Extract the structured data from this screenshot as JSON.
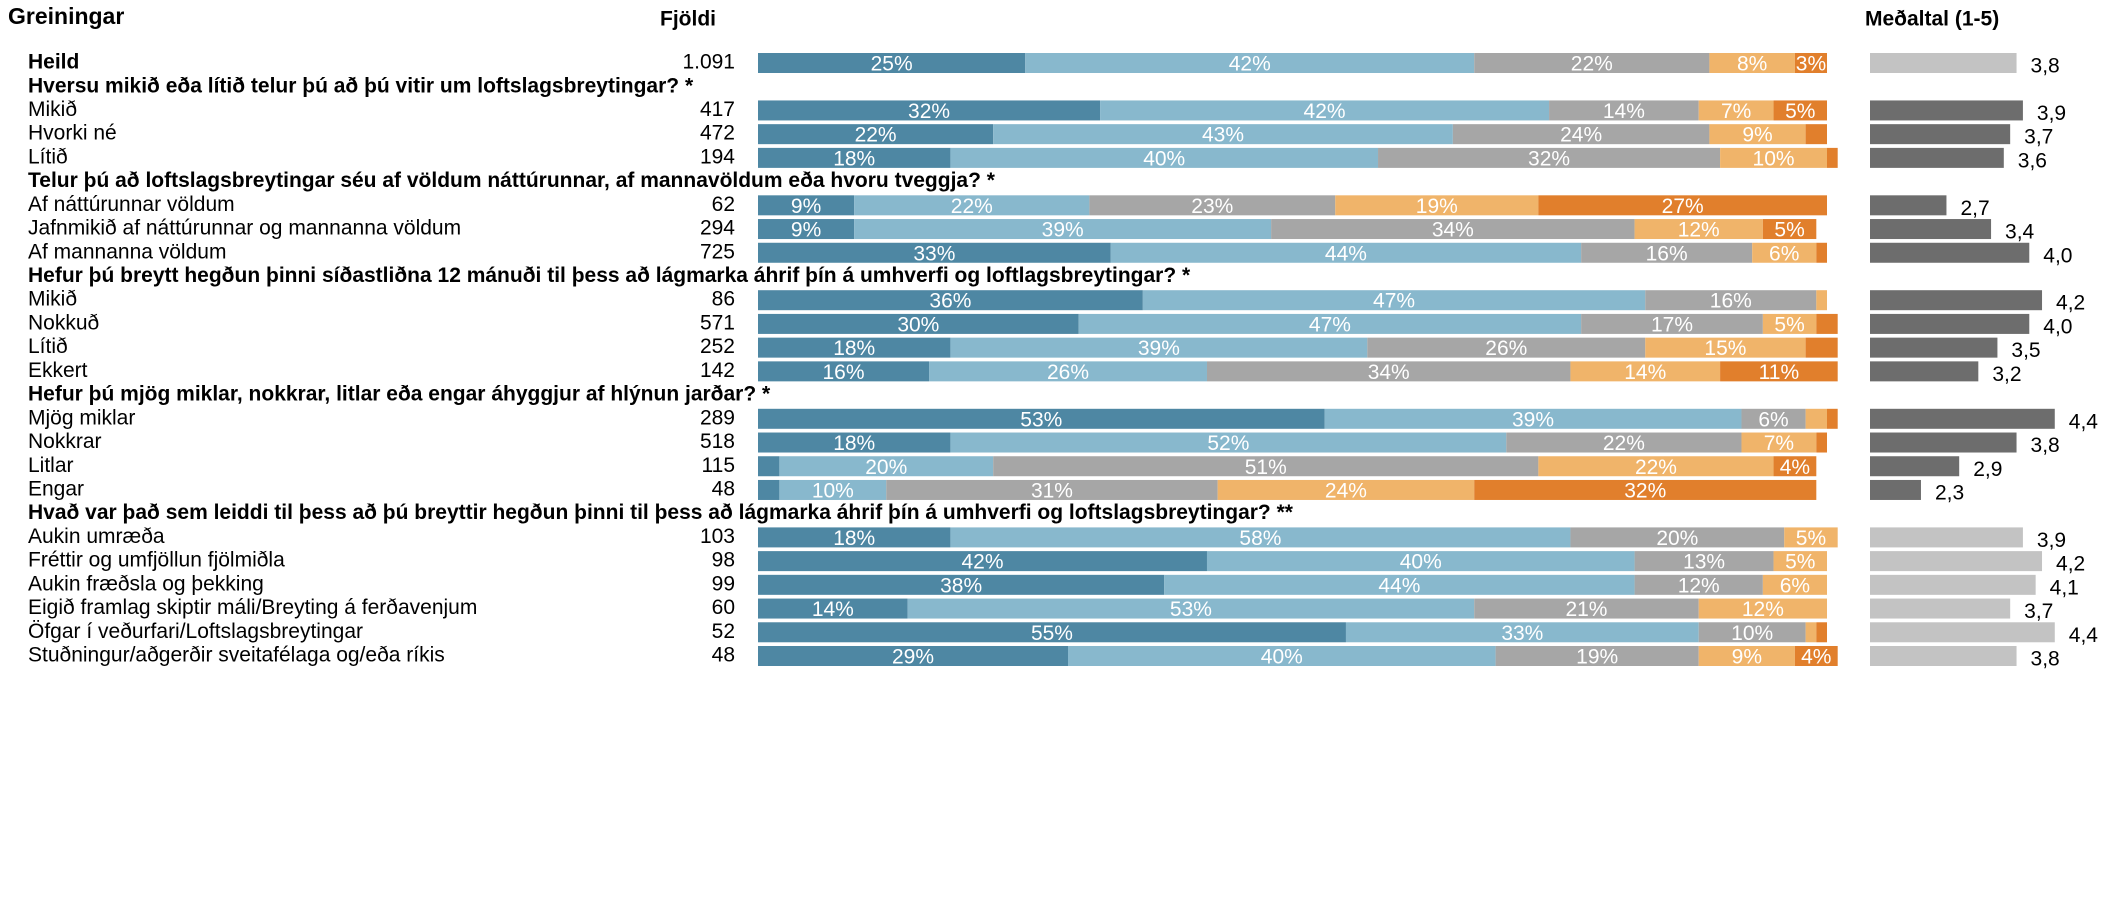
{
  "headers": {
    "label": "Greiningar",
    "count": "Fjöldi",
    "mean": "Meðaltal (1-5)"
  },
  "chart_data": {
    "type": "stacked-bar",
    "xlim": [
      0,
      100
    ],
    "colors": [
      "#4e87a3",
      "#88b8cd",
      "#a6a6a6",
      "#f0b46a",
      "#e17f2c"
    ],
    "mean_xlim": [
      1.5,
      5
    ],
    "total": {
      "label": "Heild",
      "count": "1.091",
      "values": [
        25,
        42,
        22,
        8,
        3
      ],
      "value_labels": [
        "25%",
        "42%",
        "22%",
        "8%",
        "3%"
      ],
      "mean": 3.8,
      "mean_label": "3,8",
      "mean_color": "#c3c3c3"
    },
    "groups": [
      {
        "title": "Hversu mikið eða lítið telur þú að þú vitir um loftslagsbreytingar? *",
        "mean_color": "#6d6d6d",
        "rows": [
          {
            "label": "Mikið",
            "count": "417",
            "values": [
              32,
              42,
              14,
              7,
              5
            ],
            "value_labels": [
              "32%",
              "42%",
              "14%",
              "7%",
              "5%"
            ],
            "mean": 3.9,
            "mean_label": "3,9"
          },
          {
            "label": "Hvorki né",
            "count": "472",
            "values": [
              22,
              43,
              24,
              9,
              2
            ],
            "value_labels": [
              "22%",
              "43%",
              "24%",
              "9%",
              null
            ],
            "mean": 3.7,
            "mean_label": "3,7"
          },
          {
            "label": "Lítið",
            "count": "194",
            "values": [
              18,
              40,
              32,
              10,
              1
            ],
            "value_labels": [
              "18%",
              "40%",
              "32%",
              "10%",
              null
            ],
            "mean": 3.6,
            "mean_label": "3,6"
          }
        ]
      },
      {
        "title": "Telur þú að loftslagsbreytingar séu af völdum náttúrunnar, af mannavöldum eða hvoru tveggja? *",
        "mean_color": "#6d6d6d",
        "rows": [
          {
            "label": "Af náttúrunnar völdum",
            "count": "62",
            "values": [
              9,
              22,
              23,
              19,
              27
            ],
            "value_labels": [
              "9%",
              "22%",
              "23%",
              "19%",
              "27%"
            ],
            "mean": 2.7,
            "mean_label": "2,7"
          },
          {
            "label": "Jafnmikið af náttúrunnar og mannanna völdum",
            "count": "294",
            "values": [
              9,
              39,
              34,
              12,
              5
            ],
            "value_labels": [
              "9%",
              "39%",
              "34%",
              "12%",
              "5%"
            ],
            "mean": 3.4,
            "mean_label": "3,4"
          },
          {
            "label": "Af mannanna völdum",
            "count": "725",
            "values": [
              33,
              44,
              16,
              6,
              1
            ],
            "value_labels": [
              "33%",
              "44%",
              "16%",
              "6%",
              null
            ],
            "mean": 4.0,
            "mean_label": "4,0"
          }
        ]
      },
      {
        "title": "Hefur þú breytt hegðun þinni síðastliðna 12 mánuði til þess að lágmarka áhrif þín á umhverfi og loftlagsbreytingar? *",
        "mean_color": "#6d6d6d",
        "rows": [
          {
            "label": "Mikið",
            "count": "86",
            "values": [
              36,
              47,
              16,
              1,
              0
            ],
            "value_labels": [
              "36%",
              "47%",
              "16%",
              null,
              null
            ],
            "mean": 4.2,
            "mean_label": "4,2"
          },
          {
            "label": "Nokkuð",
            "count": "571",
            "values": [
              30,
              47,
              17,
              5,
              2
            ],
            "value_labels": [
              "30%",
              "47%",
              "17%",
              "5%",
              null
            ],
            "mean": 4.0,
            "mean_label": "4,0"
          },
          {
            "label": "Lítið",
            "count": "252",
            "values": [
              18,
              39,
              26,
              15,
              3
            ],
            "value_labels": [
              "18%",
              "39%",
              "26%",
              "15%",
              null
            ],
            "mean": 3.5,
            "mean_label": "3,5"
          },
          {
            "label": "Ekkert",
            "count": "142",
            "values": [
              16,
              26,
              34,
              14,
              11
            ],
            "value_labels": [
              "16%",
              "26%",
              "34%",
              "14%",
              "11%"
            ],
            "mean": 3.2,
            "mean_label": "3,2"
          }
        ]
      },
      {
        "title": "Hefur þú mjög miklar, nokkrar, litlar eða engar áhyggjur af hlýnun jarðar? *",
        "mean_color": "#6d6d6d",
        "rows": [
          {
            "label": "Mjög miklar",
            "count": "289",
            "values": [
              53,
              39,
              6,
              2,
              1
            ],
            "value_labels": [
              "53%",
              "39%",
              "6%",
              null,
              null
            ],
            "mean": 4.4,
            "mean_label": "4,4"
          },
          {
            "label": "Nokkrar",
            "count": "518",
            "values": [
              18,
              52,
              22,
              7,
              1
            ],
            "value_labels": [
              "18%",
              "52%",
              "22%",
              "7%",
              null
            ],
            "mean": 3.8,
            "mean_label": "3,8"
          },
          {
            "label": "Litlar",
            "count": "115",
            "values": [
              2,
              20,
              51,
              22,
              4
            ],
            "value_labels": [
              null,
              "20%",
              "51%",
              "22%",
              "4%"
            ],
            "mean": 2.9,
            "mean_label": "2,9"
          },
          {
            "label": "Engar",
            "count": "48",
            "values": [
              2,
              10,
              31,
              24,
              32
            ],
            "value_labels": [
              null,
              "10%",
              "31%",
              "24%",
              "32%"
            ],
            "mean": 2.3,
            "mean_label": "2,3"
          }
        ]
      },
      {
        "title": "Hvað var það sem leiddi til þess að þú breyttir hegðun þinni til þess að lágmarka áhrif þín á umhverfi og loftslagsbreytingar? **",
        "mean_color": "#c3c3c3",
        "rows": [
          {
            "label": "Aukin umræða",
            "count": "103",
            "values": [
              18,
              58,
              20,
              5,
              0
            ],
            "value_labels": [
              "18%",
              "58%",
              "20%",
              "5%",
              null
            ],
            "mean": 3.9,
            "mean_label": "3,9"
          },
          {
            "label": "Fréttir og umfjöllun fjölmiðla",
            "count": "98",
            "values": [
              42,
              40,
              13,
              5,
              0
            ],
            "value_labels": [
              "42%",
              "40%",
              "13%",
              "5%",
              null
            ],
            "mean": 4.2,
            "mean_label": "4,2"
          },
          {
            "label": "Aukin fræðsla og þekking",
            "count": "99",
            "values": [
              38,
              44,
              12,
              6,
              0
            ],
            "value_labels": [
              "38%",
              "44%",
              "12%",
              "6%",
              null
            ],
            "mean": 4.1,
            "mean_label": "4,1"
          },
          {
            "label": "Eigið framlag skiptir máli/Breyting á ferðavenjum",
            "count": "60",
            "values": [
              14,
              53,
              21,
              12,
              0
            ],
            "value_labels": [
              "14%",
              "53%",
              "21%",
              "12%",
              null
            ],
            "mean": 3.7,
            "mean_label": "3,7"
          },
          {
            "label": "Öfgar í veðurfari/Loftslagsbreytingar",
            "count": "52",
            "values": [
              55,
              33,
              10,
              1,
              1
            ],
            "value_labels": [
              "55%",
              "33%",
              "10%",
              null,
              null
            ],
            "mean": 4.4,
            "mean_label": "4,4"
          },
          {
            "label": "Stuðningur/aðgerðir sveitafélaga og/eða ríkis",
            "count": "48",
            "values": [
              29,
              40,
              19,
              9,
              4
            ],
            "value_labels": [
              "29%",
              "40%",
              "19%",
              "9%",
              "4%"
            ],
            "mean": 3.8,
            "mean_label": "3,8"
          }
        ]
      }
    ]
  }
}
